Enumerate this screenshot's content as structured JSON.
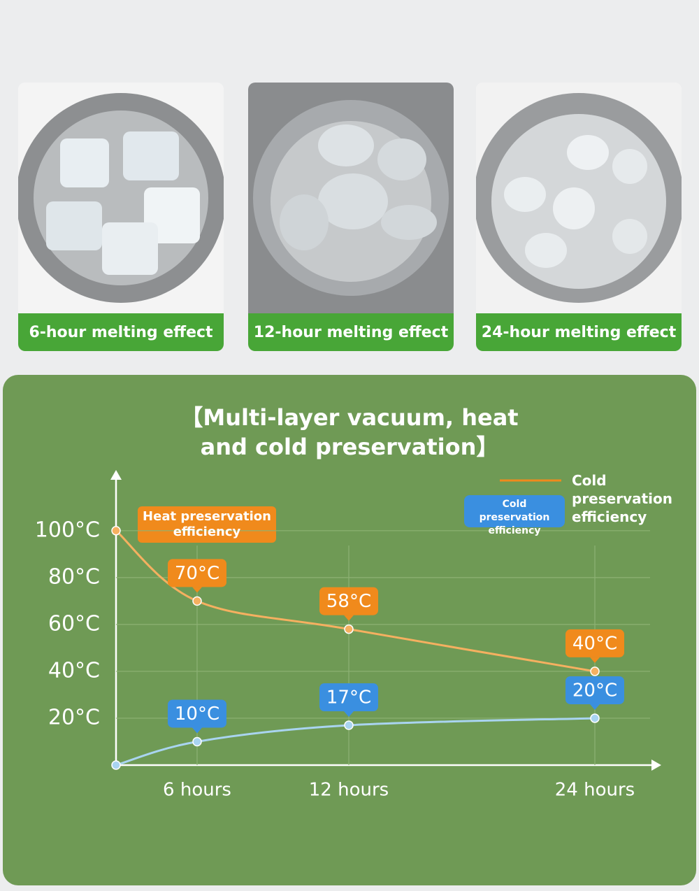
{
  "panels": [
    {
      "caption": "6-hour melting effect"
    },
    {
      "caption": "12-hour melting effect"
    },
    {
      "caption": "24-hour melting effect"
    }
  ],
  "chart_data": {
    "type": "line",
    "title": "【Multi-layer vacuum, heat and cold preservation】",
    "legend_note": "Cold preservation efficiency",
    "categories": [
      null,
      "6 hours",
      "12 hours",
      "24 hours"
    ],
    "ylim": [
      0,
      125
    ],
    "yticks": [
      {
        "value": 20,
        "label": "20°C"
      },
      {
        "value": 40,
        "label": "40°C"
      },
      {
        "value": 60,
        "label": "60°C"
      },
      {
        "value": 80,
        "label": "80°C"
      },
      {
        "value": 100,
        "label": "100°C"
      }
    ],
    "grid": true,
    "series": [
      {
        "name": "Heat preservation efficiency",
        "color": "#f08a1c",
        "point_color": "#f5b060",
        "values": [
          100,
          70,
          58,
          40
        ],
        "value_labels": [
          null,
          "70°C",
          "58°C",
          "40°C"
        ]
      },
      {
        "name": "Cold preservation efficiency",
        "color": "#3a8fe0",
        "point_color": "#a9d4f0",
        "values": [
          0,
          10,
          17,
          20
        ],
        "value_labels": [
          null,
          "10°C",
          "17°C",
          "20°C"
        ]
      }
    ]
  }
}
